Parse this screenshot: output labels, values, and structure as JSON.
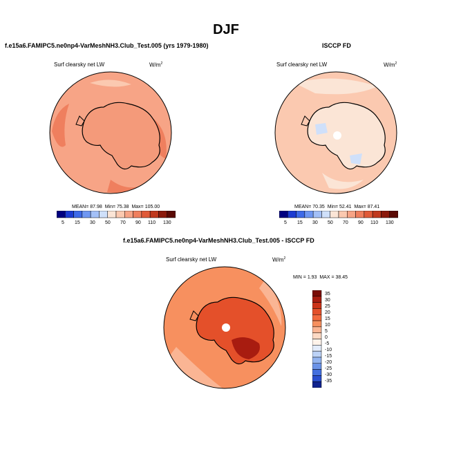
{
  "figure": {
    "title": "DJF"
  },
  "panels": [
    {
      "id": "model",
      "title": "f.e15a6.FAMIPC5.ne0np4-VarMeshNH3.Club_Test.005 (yrs 1979-1980)",
      "variable": "Surf clearsky net LW",
      "units_base": "W/m",
      "units_exp": "2",
      "stats": {
        "mean_label": "MEAN=",
        "mean": "87.98",
        "min_label": "Min=",
        "min": "75.38",
        "max_label": "Max=",
        "max": "105.00"
      },
      "colorbar_ticks": [
        "5",
        "15",
        "30",
        "50",
        "70",
        "90",
        "110",
        "130"
      ]
    },
    {
      "id": "obs",
      "title": "ISCCP FD",
      "variable": "Surf clearsky net LW",
      "units_base": "W/m",
      "units_exp": "2",
      "stats": {
        "mean_label": "MEAN=",
        "mean": "70.35",
        "min_label": "Min=",
        "min": "52.41",
        "max_label": "Max=",
        "max": "87.41"
      },
      "colorbar_ticks": [
        "5",
        "15",
        "30",
        "50",
        "70",
        "90",
        "110",
        "130"
      ]
    },
    {
      "id": "diff",
      "title": "f.e15a6.FAMIPC5.ne0np4-VarMeshNH3.Club_Test.005 - ISCCP FD",
      "variable": "Surf clearsky net LW",
      "units_base": "W/m",
      "units_exp": "2",
      "stats": {
        "min_label": "MIN =",
        "min": "1.93",
        "max_label": "MAX =",
        "max": "38.45"
      },
      "colorbar_ticks": [
        "35",
        "30",
        "25",
        "20",
        "15",
        "10",
        "5",
        "0",
        "-5",
        "-10",
        "-15",
        "-20",
        "-25",
        "-30",
        "-35"
      ]
    }
  ],
  "chart_data": [
    {
      "type": "heatmap",
      "projection": "south-polar-stereographic",
      "title": "f.e15a6.FAMIPC5.ne0np4-VarMeshNH3.Club_Test.005 (yrs 1979-1980)",
      "variable": "Surf clearsky net LW",
      "units": "W/m2",
      "mean": 87.98,
      "min": 75.38,
      "max": 105.0,
      "colorbar_levels": [
        5,
        15,
        30,
        50,
        70,
        90,
        110,
        130
      ],
      "colors": [
        "#000080",
        "#1c3bd1",
        "#3e6ae8",
        "#6f97f2",
        "#a3c0f7",
        "#cfe0fa",
        "#fbe5d6",
        "#fbc9b0",
        "#f7a486",
        "#ef7f5e",
        "#e05a38",
        "#c0391e",
        "#8b1a0c",
        "#5a0a04"
      ]
    },
    {
      "type": "heatmap",
      "projection": "south-polar-stereographic",
      "title": "ISCCP FD",
      "variable": "Surf clearsky net LW",
      "units": "W/m2",
      "mean": 70.35,
      "min": 52.41,
      "max": 87.41,
      "colorbar_levels": [
        5,
        15,
        30,
        50,
        70,
        90,
        110,
        130
      ],
      "colors": [
        "#000080",
        "#1c3bd1",
        "#3e6ae8",
        "#6f97f2",
        "#a3c0f7",
        "#cfe0fa",
        "#fbe5d6",
        "#fbc9b0",
        "#f7a486",
        "#ef7f5e",
        "#e05a38",
        "#c0391e",
        "#8b1a0c",
        "#5a0a04"
      ]
    },
    {
      "type": "heatmap",
      "projection": "south-polar-stereographic",
      "title": "f.e15a6.FAMIPC5.ne0np4-VarMeshNH3.Club_Test.005 - ISCCP FD",
      "variable": "Surf clearsky net LW",
      "units": "W/m2",
      "min": 1.93,
      "max": 38.45,
      "colorbar_levels": [
        35,
        30,
        25,
        20,
        15,
        10,
        5,
        0,
        -5,
        -10,
        -15,
        -20,
        -25,
        -30,
        -35
      ],
      "colors": [
        "#7a0c06",
        "#a81c10",
        "#cc3318",
        "#e4502a",
        "#f26a3e",
        "#f7905f",
        "#fab594",
        "#fdd9c4",
        "#fff3ea",
        "#e3ecfb",
        "#bcd2f6",
        "#93b4f0",
        "#6b93e8",
        "#4470df",
        "#2a4fcf",
        "#10238f"
      ]
    }
  ]
}
